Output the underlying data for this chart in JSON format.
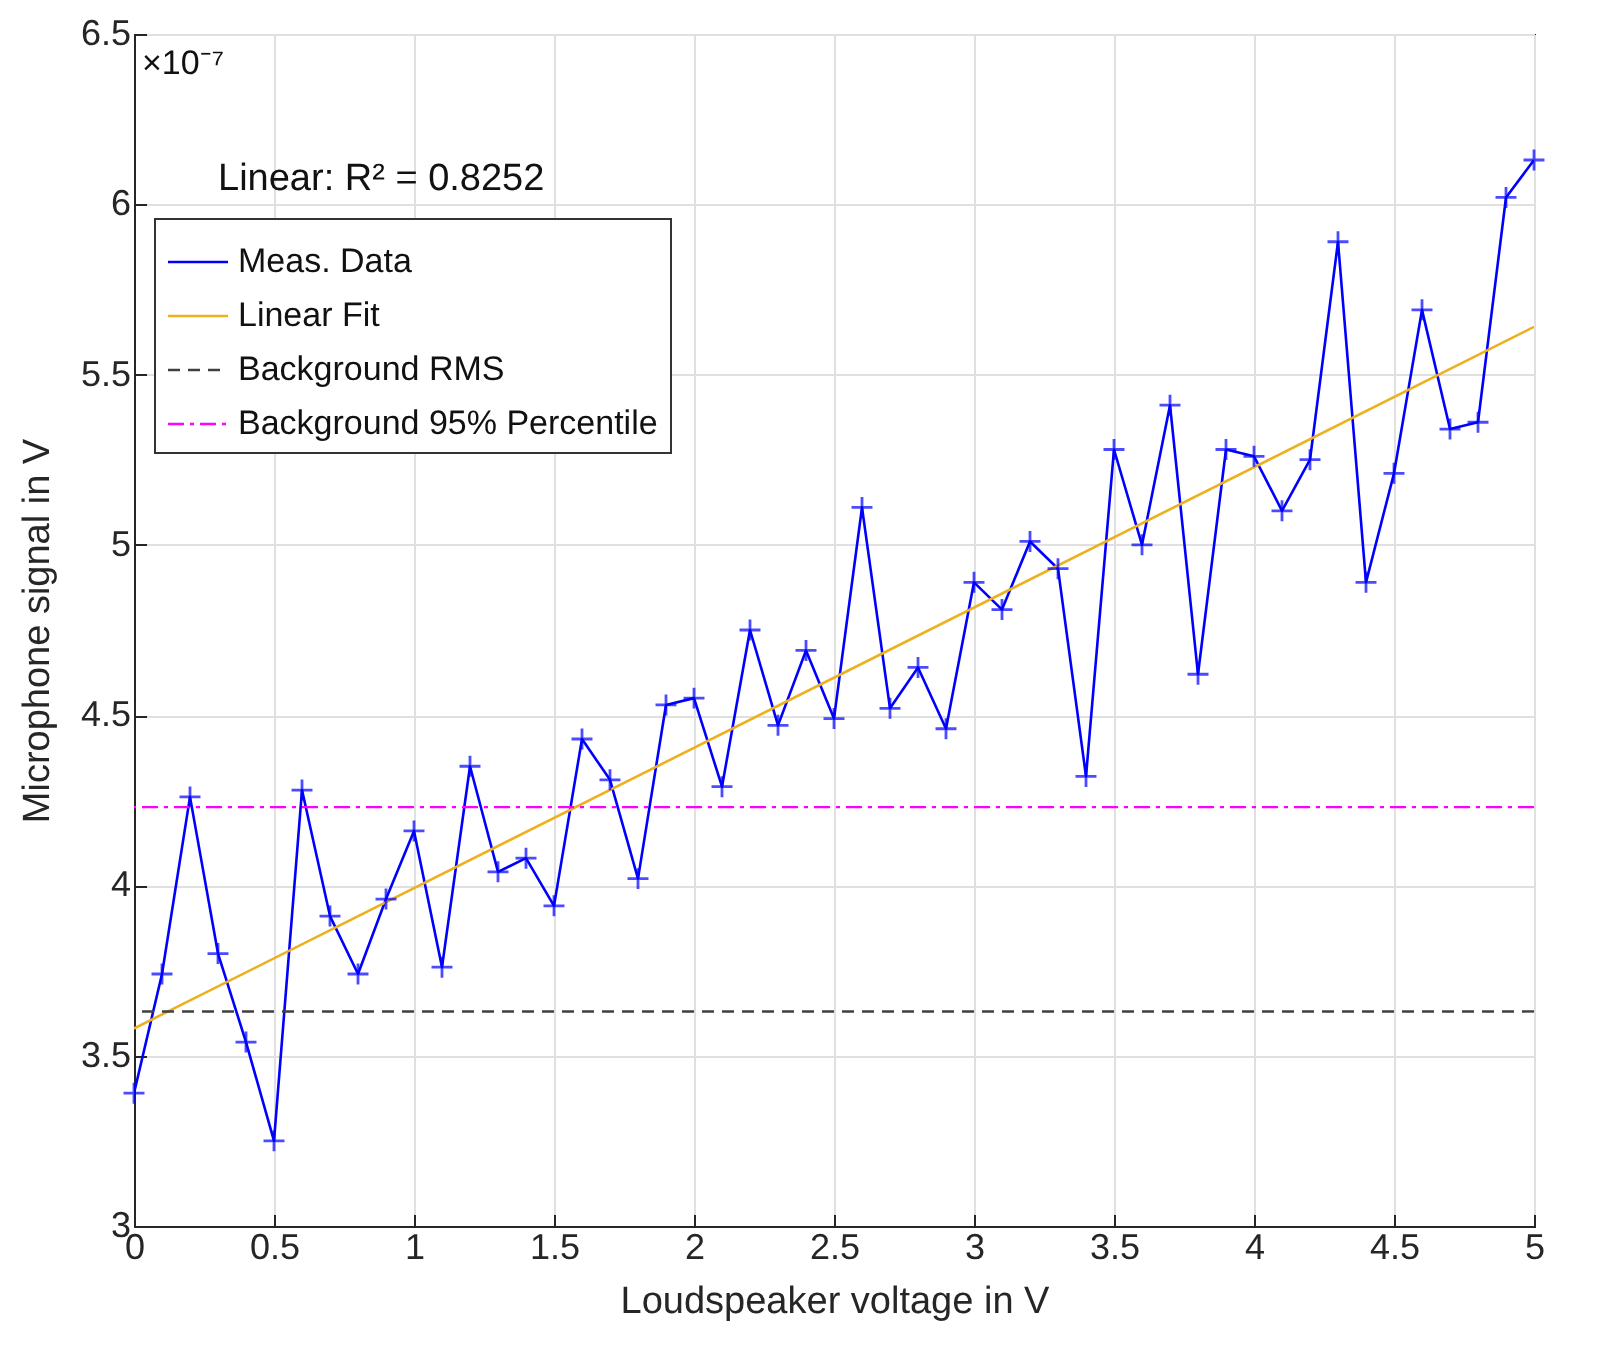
{
  "chart_data": {
    "type": "line",
    "xlabel": "Loudspeaker voltage in V",
    "ylabel": "Microphone signal in V",
    "annotations": [
      "Linear: R² = 0.8252",
      "×10⁻⁷"
    ],
    "x": [
      0,
      0.1,
      0.2,
      0.3,
      0.4,
      0.5,
      0.6,
      0.7,
      0.8,
      0.9,
      1,
      1.1,
      1.2,
      1.3,
      1.4,
      1.5,
      1.6,
      1.7,
      1.8,
      1.9,
      2,
      2.1,
      2.2,
      2.3,
      2.4,
      2.5,
      2.6,
      2.7,
      2.8,
      2.9,
      3,
      3.1,
      3.2,
      3.3,
      3.4,
      3.5,
      3.6,
      3.7,
      3.8,
      3.9,
      4,
      4.1,
      4.2,
      4.3,
      4.4,
      4.5,
      4.6,
      4.7,
      4.8,
      4.9,
      5
    ],
    "series": [
      {
        "name": "Meas. Data",
        "color": "#0000ff",
        "values": [
          3.39,
          3.74,
          4.26,
          3.8,
          3.54,
          3.25,
          4.28,
          3.91,
          3.74,
          3.96,
          4.16,
          3.76,
          4.35,
          4.04,
          4.08,
          3.94,
          4.43,
          4.31,
          4.02,
          4.53,
          4.55,
          4.29,
          4.75,
          4.47,
          4.69,
          4.49,
          5.11,
          4.52,
          4.64,
          4.46,
          4.89,
          4.81,
          5.01,
          4.93,
          4.32,
          5.28,
          5,
          5.41,
          4.62,
          5.28,
          5.26,
          5.1,
          5.25,
          5.89,
          4.89,
          5.21,
          5.69,
          5.34,
          5.36,
          6.02,
          6.13
        ]
      },
      {
        "name": "Linear Fit",
        "type": "line",
        "marker": "none",
        "color": "#edb120",
        "x": [
          0,
          5
        ],
        "values": [
          3.58,
          5.64
        ]
      }
    ],
    "ref_lines": [
      {
        "axis": "y",
        "value": 3.63,
        "label": "Background RMS",
        "color": "#404040",
        "line_style": "dashed"
      },
      {
        "axis": "y",
        "value": 4.23,
        "label": "Background 95% Percentile",
        "color": "#ff00ff",
        "line_style": "dashdot"
      }
    ],
    "xlim": [
      0,
      5
    ],
    "xticks": [
      0,
      0.5,
      1,
      1.5,
      2,
      2.5,
      3,
      3.5,
      4,
      4.5,
      5
    ],
    "ylim": [
      3,
      6.5
    ],
    "yticks": [
      3,
      3.5,
      4,
      4.5,
      5,
      5.5,
      6,
      6.5
    ],
    "grid": true,
    "legend": "top left",
    "marker": "cross",
    "line_style": "solid"
  }
}
